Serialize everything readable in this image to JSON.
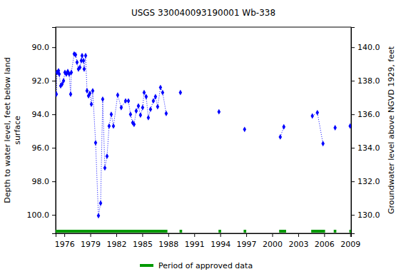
{
  "chart_data": {
    "type": "line",
    "title": "USGS 330040093190001 Wb-338",
    "y_label": [
      "Depth to water level, feet below land",
      "surface"
    ],
    "y2_label": "Groundwater level above NGVD 1929, feet",
    "x": [
      1975.08,
      1975.16,
      1975.33,
      1975.41,
      1975.58,
      1975.74,
      1975.91,
      1976.07,
      1976.23,
      1976.4,
      1976.56,
      1976.73,
      1976.81,
      1977.14,
      1977.3,
      1977.47,
      1977.63,
      1977.8,
      1977.96,
      1978.05,
      1978.21,
      1978.29,
      1978.46,
      1978.62,
      1978.79,
      1978.95,
      1979.12,
      1979.28,
      1979.61,
      1979.94,
      1980.19,
      1980.43,
      1980.68,
      1980.93,
      1981.17,
      1981.42,
      1981.67,
      1982.16,
      1982.57,
      1983.07,
      1983.4,
      1983.64,
      1983.89,
      1984.05,
      1984.3,
      1984.55,
      1984.79,
      1985.04,
      1985.21,
      1985.45,
      1985.7,
      1985.95,
      1986.28,
      1986.52,
      1986.77,
      1987.1,
      1987.35,
      1987.76,
      1988.6,
      1989.4,
      1991.6,
      1993.85,
      1995.3,
      1996.81,
      1998.9,
      2000.93,
      2001.34,
      2003.0,
      2004.63,
      2005.21,
      2005.86,
      2006.5,
      2007.26,
      2008.1,
      2008.99
    ],
    "series": [
      {
        "color": "#0000ff",
        "marker": "diamond",
        "line_style": "dotted",
        "values": [
          92.8,
          91.5,
          91.4,
          91.6,
          92.3,
          92.2,
          92.0,
          91.5,
          91.6,
          91.45,
          91.6,
          92.8,
          91.5,
          90.4,
          90.45,
          90.9,
          91.3,
          91.2,
          90.8,
          90.5,
          90.8,
          91.3,
          90.5,
          92.6,
          92.9,
          92.75,
          93.4,
          92.6,
          95.7,
          100.05,
          99.3,
          93.1,
          97.2,
          96.5,
          94.7,
          94.0,
          94.7,
          92.85,
          93.6,
          93.2,
          93.2,
          94.0,
          94.5,
          94.6,
          93.8,
          93.5,
          94.05,
          93.6,
          92.7,
          92.95,
          94.2,
          93.7,
          93.2,
          92.95,
          93.55,
          92.4,
          92.7,
          93.95,
          null,
          92.7,
          null,
          93.85,
          null,
          94.9,
          null,
          95.35,
          94.75,
          null,
          94.1,
          93.9,
          95.75,
          null,
          94.8,
          null,
          94.7
        ]
      }
    ],
    "xlim": [
      1975.0,
      2009.1
    ],
    "xticks": [
      1976,
      1979,
      1982,
      1985,
      1988,
      1991,
      1994,
      1997,
      2000,
      2003,
      2006,
      2009
    ],
    "ylim": [
      101.1,
      88.8
    ],
    "yticks": [
      {
        "value": 90,
        "label": "90.0"
      },
      {
        "value": 92,
        "label": "92.0"
      },
      {
        "value": 94,
        "label": "94.0"
      },
      {
        "value": 96,
        "label": "96.0"
      },
      {
        "value": 98,
        "label": "98.0"
      },
      {
        "value": 100,
        "label": "100.0"
      }
    ],
    "y2lim": [
      128.9,
      141.2
    ],
    "y2ticks": [
      {
        "value": 130,
        "label": "130.0"
      },
      {
        "value": 132,
        "label": "132.0"
      },
      {
        "value": 134,
        "label": "134.0"
      },
      {
        "value": 136,
        "label": "136.0"
      },
      {
        "value": 138,
        "label": "138.0"
      },
      {
        "value": 140,
        "label": "140.0"
      }
    ],
    "grid": false,
    "approved": {
      "name": "Period of approved data",
      "color": "#009900",
      "ranges": [
        [
          1975.0,
          1987.9
        ],
        [
          1989.3,
          1989.6
        ],
        [
          1993.8,
          1994.1
        ],
        [
          1996.7,
          1997.0
        ],
        [
          2000.8,
          2001.6
        ],
        [
          2004.5,
          2006.1
        ],
        [
          2007.1,
          2007.4
        ],
        [
          2008.9,
          2009.1
        ]
      ]
    }
  }
}
